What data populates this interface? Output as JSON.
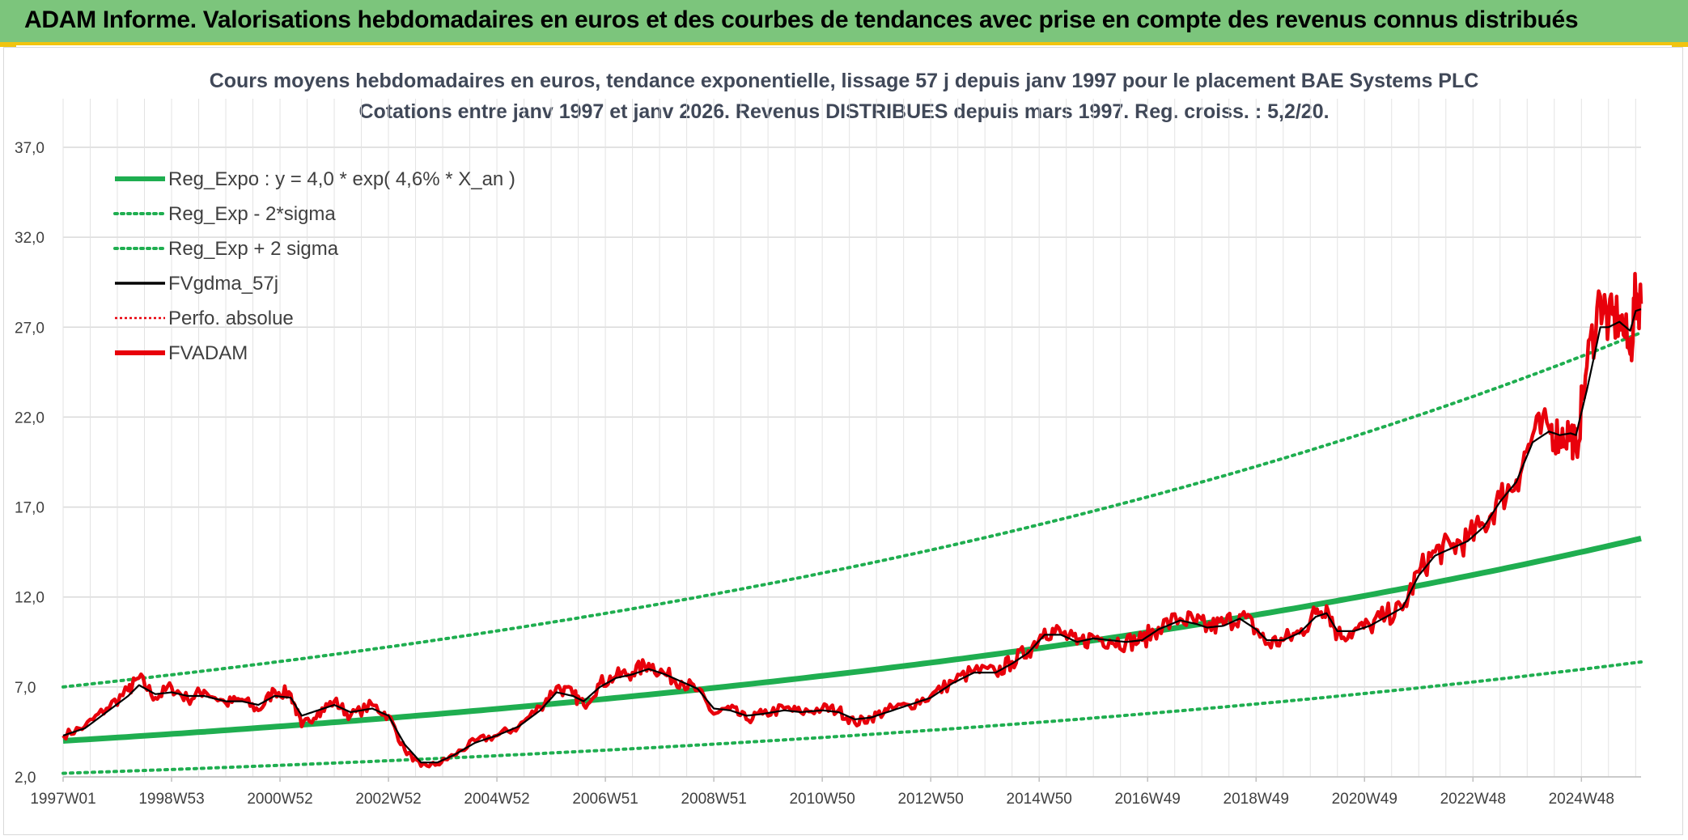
{
  "header": {
    "title": "ADAM Informe. Valorisations hebdomadaires en euros et des courbes de tendances avec prise en compte des revenus connus distribués"
  },
  "chart_data": {
    "type": "line",
    "title_line1": "Cours moyens hebdomadaires en euros, tendance exponentielle, lissage 57 j depuis janv 1997 pour le placement BAE Systems PLC",
    "title_line2": "Cotations entre janv 1997 et janv 2026. Revenus DISTRIBUES depuis mars 1997. Reg. croiss. : 5,2/20.",
    "ylim": [
      2.0,
      37.0
    ],
    "y_ticks": [
      "37,0",
      "32,0",
      "27,0",
      "22,0",
      "17,0",
      "12,0",
      "7,0",
      "2,0"
    ],
    "x_range_years": [
      1997.0,
      2026.1
    ],
    "x_ticks": [
      "1997W01",
      "1998W53",
      "2000W52",
      "2002W52",
      "2004W52",
      "2006W51",
      "2008W51",
      "2010W50",
      "2012W50",
      "2014W50",
      "2016W49",
      "2018W49",
      "2020W49",
      "2022W48",
      "2024W48"
    ],
    "x_tick_years": [
      1997.0,
      1999.0,
      2001.0,
      2003.0,
      2005.0,
      2007.0,
      2009.0,
      2011.0,
      2013.0,
      2015.0,
      2017.0,
      2019.0,
      2021.0,
      2023.0,
      2025.0
    ],
    "legend": [
      {
        "label": "Reg_Expo : y = 4,0 * exp( 4,6% *  X_an )",
        "color": "#1fae50",
        "style": "solid-thick"
      },
      {
        "label": "Reg_Exp - 2*sigma",
        "color": "#1fae50",
        "style": "dotted"
      },
      {
        "label": "Reg_Exp + 2 sigma",
        "color": "#1fae50",
        "style": "dotted"
      },
      {
        "label": "FVgdma_57j",
        "color": "#000000",
        "style": "solid"
      },
      {
        "label": "Perfo. absolue",
        "color": "#e8000b",
        "style": "dotted-thin"
      },
      {
        "label": "FVADAM",
        "color": "#e8000b",
        "style": "solid-thick"
      }
    ],
    "regression": {
      "a": 4.0,
      "rate": 0.046,
      "lower_factor": 0.55,
      "upper_factor": 1.75
    },
    "series": [
      {
        "name": "FVADAM",
        "color": "#e8000b",
        "points": [
          [
            1997.0,
            4.3
          ],
          [
            1997.4,
            4.8
          ],
          [
            1997.8,
            5.8
          ],
          [
            1998.2,
            6.8
          ],
          [
            1998.4,
            7.5
          ],
          [
            1998.7,
            6.4
          ],
          [
            1999.0,
            7.0
          ],
          [
            1999.3,
            6.3
          ],
          [
            1999.6,
            6.8
          ],
          [
            2000.0,
            6.1
          ],
          [
            2000.3,
            6.3
          ],
          [
            2000.6,
            5.7
          ],
          [
            2000.9,
            6.8
          ],
          [
            2001.2,
            6.6
          ],
          [
            2001.4,
            4.8
          ],
          [
            2001.7,
            5.6
          ],
          [
            2002.0,
            6.2
          ],
          [
            2002.3,
            5.4
          ],
          [
            2002.7,
            6.0
          ],
          [
            2003.0,
            5.4
          ],
          [
            2003.3,
            3.5
          ],
          [
            2003.6,
            2.6
          ],
          [
            2003.9,
            2.7
          ],
          [
            2004.2,
            3.2
          ],
          [
            2004.6,
            4.0
          ],
          [
            2005.0,
            4.3
          ],
          [
            2005.4,
            4.8
          ],
          [
            2005.8,
            5.9
          ],
          [
            2006.1,
            7.0
          ],
          [
            2006.4,
            6.6
          ],
          [
            2006.6,
            6.0
          ],
          [
            2006.9,
            7.2
          ],
          [
            2007.2,
            7.6
          ],
          [
            2007.5,
            7.8
          ],
          [
            2007.8,
            8.3
          ],
          [
            2008.1,
            7.7
          ],
          [
            2008.4,
            7.3
          ],
          [
            2008.7,
            6.8
          ],
          [
            2009.0,
            5.5
          ],
          [
            2009.3,
            5.8
          ],
          [
            2009.6,
            5.2
          ],
          [
            2009.9,
            5.5
          ],
          [
            2010.3,
            5.8
          ],
          [
            2010.6,
            5.6
          ],
          [
            2011.0,
            5.8
          ],
          [
            2011.3,
            5.7
          ],
          [
            2011.6,
            5.0
          ],
          [
            2011.9,
            5.3
          ],
          [
            2012.2,
            5.7
          ],
          [
            2012.6,
            6.0
          ],
          [
            2013.0,
            6.5
          ],
          [
            2013.4,
            7.3
          ],
          [
            2013.8,
            7.9
          ],
          [
            2014.2,
            7.8
          ],
          [
            2014.5,
            8.4
          ],
          [
            2014.8,
            9.0
          ],
          [
            2015.1,
            10.2
          ],
          [
            2015.4,
            10.0
          ],
          [
            2015.7,
            9.4
          ],
          [
            2016.0,
            9.8
          ],
          [
            2016.3,
            9.6
          ],
          [
            2016.6,
            9.5
          ],
          [
            2016.9,
            9.6
          ],
          [
            2017.2,
            10.3
          ],
          [
            2017.6,
            10.8
          ],
          [
            2017.9,
            10.6
          ],
          [
            2018.1,
            10.3
          ],
          [
            2018.4,
            10.5
          ],
          [
            2018.7,
            11.0
          ],
          [
            2019.0,
            10.2
          ],
          [
            2019.2,
            9.4
          ],
          [
            2019.5,
            9.6
          ],
          [
            2019.8,
            10.0
          ],
          [
            2020.1,
            11.1
          ],
          [
            2020.3,
            11.5
          ],
          [
            2020.5,
            9.9
          ],
          [
            2020.8,
            10.1
          ],
          [
            2021.1,
            10.4
          ],
          [
            2021.4,
            11.0
          ],
          [
            2021.7,
            11.3
          ],
          [
            2022.0,
            13.4
          ],
          [
            2022.3,
            14.5
          ],
          [
            2022.6,
            14.8
          ],
          [
            2022.9,
            15.2
          ],
          [
            2023.2,
            16.0
          ],
          [
            2023.5,
            17.5
          ],
          [
            2023.8,
            18.5
          ],
          [
            2024.1,
            21.0
          ],
          [
            2024.4,
            21.4
          ],
          [
            2024.6,
            20.9
          ],
          [
            2024.8,
            21.2
          ],
          [
            2024.9,
            20.2
          ],
          [
            2025.1,
            24.8
          ],
          [
            2025.35,
            28.7
          ],
          [
            2025.5,
            27.2
          ],
          [
            2025.7,
            27.6
          ],
          [
            2025.9,
            25.5
          ],
          [
            2026.0,
            28.8
          ],
          [
            2026.1,
            28.3
          ]
        ]
      },
      {
        "name": "FVgdma_57j",
        "color": "#000000",
        "points": [
          [
            1997.0,
            4.3
          ],
          [
            1997.4,
            4.7
          ],
          [
            1997.8,
            5.6
          ],
          [
            1998.2,
            6.5
          ],
          [
            1998.4,
            7.1
          ],
          [
            1998.7,
            6.6
          ],
          [
            1999.0,
            6.7
          ],
          [
            1999.3,
            6.5
          ],
          [
            1999.6,
            6.5
          ],
          [
            2000.0,
            6.2
          ],
          [
            2000.3,
            6.2
          ],
          [
            2000.6,
            6.0
          ],
          [
            2000.9,
            6.5
          ],
          [
            2001.2,
            6.4
          ],
          [
            2001.4,
            5.4
          ],
          [
            2001.7,
            5.7
          ],
          [
            2002.0,
            6.0
          ],
          [
            2002.3,
            5.6
          ],
          [
            2002.7,
            5.8
          ],
          [
            2003.0,
            5.4
          ],
          [
            2003.3,
            3.8
          ],
          [
            2003.6,
            2.8
          ],
          [
            2003.9,
            2.8
          ],
          [
            2004.2,
            3.2
          ],
          [
            2004.6,
            3.9
          ],
          [
            2005.0,
            4.3
          ],
          [
            2005.4,
            4.8
          ],
          [
            2005.8,
            5.7
          ],
          [
            2006.1,
            6.7
          ],
          [
            2006.4,
            6.5
          ],
          [
            2006.6,
            6.2
          ],
          [
            2006.9,
            7.0
          ],
          [
            2007.2,
            7.5
          ],
          [
            2007.5,
            7.7
          ],
          [
            2007.8,
            8.0
          ],
          [
            2008.1,
            7.7
          ],
          [
            2008.4,
            7.3
          ],
          [
            2008.7,
            6.9
          ],
          [
            2009.0,
            5.8
          ],
          [
            2009.3,
            5.7
          ],
          [
            2009.6,
            5.4
          ],
          [
            2009.9,
            5.5
          ],
          [
            2010.3,
            5.7
          ],
          [
            2010.6,
            5.6
          ],
          [
            2011.0,
            5.7
          ],
          [
            2011.3,
            5.6
          ],
          [
            2011.6,
            5.2
          ],
          [
            2011.9,
            5.3
          ],
          [
            2012.2,
            5.6
          ],
          [
            2012.6,
            6.0
          ],
          [
            2013.0,
            6.4
          ],
          [
            2013.4,
            7.2
          ],
          [
            2013.8,
            7.8
          ],
          [
            2014.2,
            7.8
          ],
          [
            2014.5,
            8.3
          ],
          [
            2014.8,
            8.9
          ],
          [
            2015.1,
            9.9
          ],
          [
            2015.4,
            9.9
          ],
          [
            2015.7,
            9.5
          ],
          [
            2016.0,
            9.7
          ],
          [
            2016.3,
            9.6
          ],
          [
            2016.6,
            9.5
          ],
          [
            2016.9,
            9.6
          ],
          [
            2017.2,
            10.2
          ],
          [
            2017.6,
            10.7
          ],
          [
            2017.9,
            10.5
          ],
          [
            2018.1,
            10.3
          ],
          [
            2018.4,
            10.4
          ],
          [
            2018.7,
            10.8
          ],
          [
            2019.0,
            10.2
          ],
          [
            2019.2,
            9.6
          ],
          [
            2019.5,
            9.6
          ],
          [
            2019.8,
            10.0
          ],
          [
            2020.1,
            10.9
          ],
          [
            2020.3,
            11.1
          ],
          [
            2020.5,
            10.1
          ],
          [
            2020.8,
            10.1
          ],
          [
            2021.1,
            10.4
          ],
          [
            2021.4,
            10.9
          ],
          [
            2021.7,
            11.4
          ],
          [
            2022.0,
            13.2
          ],
          [
            2022.3,
            14.3
          ],
          [
            2022.6,
            14.7
          ],
          [
            2022.9,
            15.1
          ],
          [
            2023.2,
            15.9
          ],
          [
            2023.5,
            17.3
          ],
          [
            2023.8,
            18.4
          ],
          [
            2024.1,
            20.6
          ],
          [
            2024.4,
            21.2
          ],
          [
            2024.6,
            21.0
          ],
          [
            2024.8,
            21.1
          ],
          [
            2024.9,
            21.0
          ],
          [
            2025.1,
            23.5
          ],
          [
            2025.35,
            27.0
          ],
          [
            2025.5,
            27.0
          ],
          [
            2025.7,
            27.3
          ],
          [
            2025.9,
            26.8
          ],
          [
            2026.0,
            27.9
          ],
          [
            2026.1,
            28.0
          ]
        ]
      }
    ]
  }
}
